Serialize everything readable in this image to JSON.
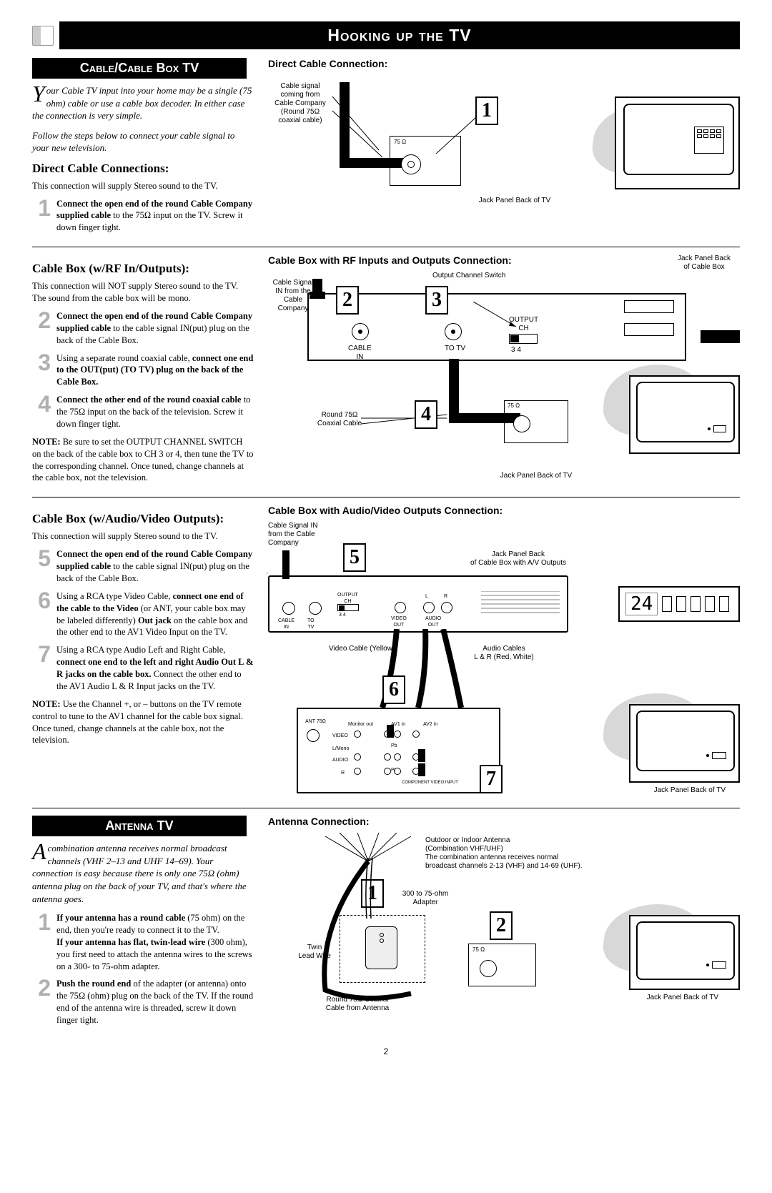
{
  "page": {
    "title": "Hooking up the TV",
    "number": "2"
  },
  "cable_section": {
    "heading": "Cable/Cable Box TV",
    "intro_dropcap": "Y",
    "intro": "our Cable TV input into your home may be a single (75 ohm) cable or use a cable box decoder. In either case the connection is very simple.",
    "intro2": "Follow the steps below to connect your cable signal to your new television.",
    "direct": {
      "heading": "Direct Cable Connections:",
      "body": "This connection will supply Stereo sound to the TV.",
      "steps": [
        {
          "n": "1",
          "text_bold": "Connect the open end of the round Cable Company supplied cable",
          "text_rest": " to the 75Ω input on the TV. Screw it down finger tight."
        }
      ],
      "diagram_heading": "Direct Cable Connection:",
      "labels": {
        "signal": "Cable signal\ncoming from\nCable Company\n(Round 75Ω\ncoaxial cable)",
        "ohm": "75 Ω",
        "jack": "Jack Panel Back of TV"
      }
    },
    "rf": {
      "heading": "Cable Box (w/RF In/Outputs):",
      "body": "This connection will NOT supply Stereo sound to the TV. The sound from the cable box will be mono.",
      "steps": [
        {
          "n": "2",
          "text_bold": "Connect the open end of the round Cable Company supplied cable",
          "text_rest": " to the cable signal IN(put) plug on the back of the Cable Box."
        },
        {
          "n": "3",
          "html": "Using a separate round coaxial cable, <b>connect one end to the OUT(put) (TO TV) plug on the back of the Cable Box.</b>"
        },
        {
          "n": "4",
          "text_bold": "Connect the other end of the round coaxial cable",
          "text_rest": " to the 75Ω input on the back of the television. Screw it down finger tight."
        }
      ],
      "note": "NOTE: Be sure to set the OUTPUT CHANNEL SWITCH on the back of the cable box to CH 3 or 4, then tune the TV to the corresponding channel. Once tuned, change channels at the cable box, not the television.",
      "diagram_heading": "Cable Box with RF Inputs and Outputs Connection:",
      "labels": {
        "jack_cb": "Jack Panel Back\nof Cable Box",
        "output_switch": "Output Channel Switch",
        "signal_in": "Cable Signal\nIN from the\nCable\nCompany",
        "cable_in": "CABLE\nIN",
        "to_tv": "TO TV",
        "output_ch": "OUTPUT\nCH",
        "ch34": "3        4",
        "coax": "Round 75Ω\nCoaxial Cable",
        "ohm": "75 Ω",
        "jack_tv": "Jack Panel Back of TV"
      }
    },
    "av": {
      "heading": "Cable Box (w/Audio/Video Outputs):",
      "body": "This connection will supply Stereo sound to the TV.",
      "steps": [
        {
          "n": "5",
          "text_bold": "Connect the open end of the round Cable Company supplied cable",
          "text_rest": " to the cable signal IN(put) plug on the back of the Cable Box."
        },
        {
          "n": "6",
          "html": "Using a RCA type Video Cable, <b>connect one end of the cable to the Video</b> (or ANT, your cable box may be labeled differently) <b>Out jack</b> on the cable box and the other end to the AV1 Video Input on the TV."
        },
        {
          "n": "7",
          "html": "Using a RCA type Audio Left and Right Cable, <b>connect one end to the left and right Audio Out L & R jacks on the cable box.</b> Connect the other end to the AV1 Audio L & R Input jacks on the TV."
        }
      ],
      "note": "NOTE: Use the Channel +, or – buttons on the TV remote control to tune to the AV1 channel for the cable box signal. Once tuned, change channels at the cable box, not the television.",
      "diagram_heading": "Cable Box with Audio/Video Outputs Connection:",
      "labels": {
        "signal_in": "Cable Signal IN\nfrom the Cable\nCompany",
        "jack_cb": "Jack Panel Back\nof Cable Box with A/V Outputs",
        "video_cable": "Video Cable (Yellow)",
        "audio_cables": "Audio Cables\nL & R (Red, White)",
        "jack_tv": "Jack Panel Back of TV",
        "display": "24",
        "cable_in": "CABLE\nIN",
        "to_tv": "TO\nTV",
        "output_ch": "OUTPUT\nCH",
        "ch34": "3      4",
        "video_out": "VIDEO\nOUT",
        "audio_out": "AUDIO\nOUT",
        "l": "L",
        "r": "R",
        "ant": "ANT 75Ω",
        "monitor": "Monitor out",
        "av1": "AV1 in",
        "av2": "AV2 in",
        "video": "VIDEO",
        "audio": "AUDIO",
        "lmono": "L/Mono",
        "pb": "Pb",
        "pr": "Pr",
        "y": "Y",
        "comp": "COMPONENT VIDEO INPUT"
      }
    }
  },
  "antenna_section": {
    "heading": "Antenna TV",
    "intro_dropcap": "A",
    "intro": " combination antenna receives normal broadcast channels (VHF 2–13 and UHF 14–69). Your connection is easy because there is only one 75Ω (ohm) antenna plug on the back of  your TV, and that's where the antenna goes.",
    "steps": [
      {
        "n": "1",
        "html": "<b>If your antenna has a round cable</b> (75 ohm) on the end, then you're ready to connect it to the TV.<br><b>If your antenna has flat, twin-lead wire</b> (300 ohm), you first need to attach the antenna wires to the screws on a 300- to 75-ohm adapter."
      },
      {
        "n": "2",
        "html": "<b>Push the round end</b> of the adapter (or antenna) onto the 75Ω (ohm) plug on the back of the TV.  If the round end of the antenna wire is threaded, screw it down finger tight."
      }
    ],
    "diagram_heading": "Antenna Connection:",
    "labels": {
      "antenna": "Outdoor or Indoor Antenna\n(Combination VHF/UHF)\nThe combination antenna receives normal\nbroadcast channels 2-13 (VHF) and 14-69 (UHF).",
      "adapter": "300 to 75-ohm\nAdapter",
      "twin": "Twin\nLead Wire",
      "coax": "Round 75Ω Coaxial\nCable from Antenna",
      "ohm": "75 Ω",
      "jack_tv": "Jack Panel Back of TV"
    }
  },
  "colors": {
    "step_num": "#b0b0b0",
    "black": "#000000",
    "gray_shadow": "#d0d0d0"
  }
}
